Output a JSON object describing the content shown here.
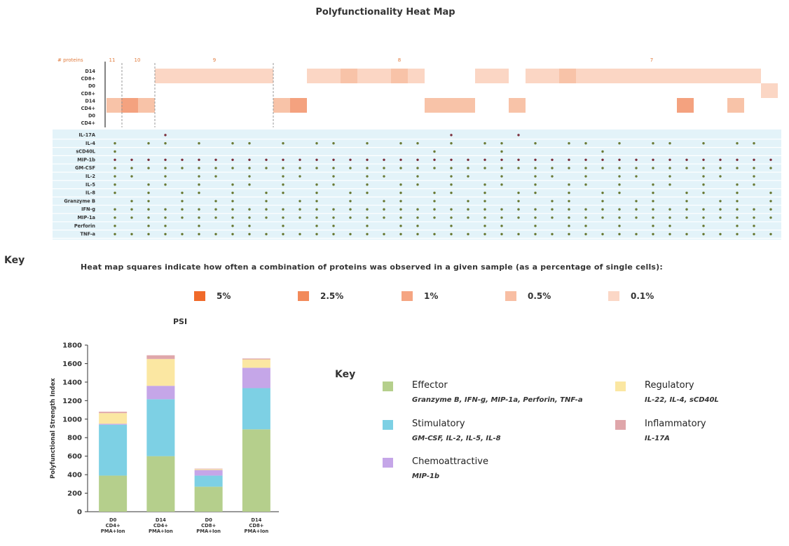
{
  "title": "Polyfunctionality Heat Map",
  "heatmap": {
    "protein_count_label": "# proteins",
    "protein_count_groups": [
      "11",
      "10",
      "9",
      "8",
      "7"
    ],
    "sample_labels": [
      "D14",
      "CD8+",
      "D0",
      "CD8+",
      "D14",
      "CD4+",
      "D0",
      "CD4+"
    ],
    "proteins": [
      "IL-17A",
      "IL-4",
      "sCD40L",
      "MIP-1b",
      "GM-CSF",
      "IL-2",
      "IL-5",
      "IL-8",
      "Granzyme B",
      "IFN-g",
      "MIP-1a",
      "Perforin",
      "TNF-a"
    ],
    "colors": {
      "row_band": "#e3f3f9",
      "heat_very_light": "#fbd6c4",
      "heat_light": "#f8c3a8",
      "heat_medium": "#f4a27f",
      "grid_dot": "#6a7a35",
      "accent_dot": "#7a2d3a"
    }
  },
  "key1_title": "Key",
  "key1_desc": "Heat map squares indicate how often a combination of proteins was observed in a given sample (as a percentage of single cells):",
  "heat_legend": [
    {
      "label": "5%",
      "color": "#f06a2a"
    },
    {
      "label": "2.5%",
      "color": "#f28a5a"
    },
    {
      "label": "1%",
      "color": "#f5a582"
    },
    {
      "label": "0.5%",
      "color": "#f8bea3"
    },
    {
      "label": "0.1%",
      "color": "#fbd7c6"
    }
  ],
  "psi_title": "PSI",
  "key2_title": "Key",
  "categories": [
    {
      "name": "Effector",
      "members": "Granzyme B, IFN-g, MIP-1a, Perforin, TNF-a",
      "color": "#b5cf8c"
    },
    {
      "name": "Stimulatory",
      "members": "GM-CSF, IL-2, IL-5, IL-8",
      "color": "#7dd0e4"
    },
    {
      "name": "Chemoattractive",
      "members": "MIP-1b",
      "color": "#c5a6e8"
    },
    {
      "name": "Regulatory",
      "members": "IL-22, IL-4, sCD40L",
      "color": "#fbe7a2"
    },
    {
      "name": "Inflammatory",
      "members": "IL-17A",
      "color": "#dfa6aa"
    }
  ],
  "chart_data": {
    "type": "bar",
    "stacked": true,
    "title": "PSI",
    "ylabel": "Polyfunctional Strength Index",
    "ylim": [
      0,
      1800
    ],
    "yticks": [
      0,
      200,
      400,
      600,
      800,
      1000,
      1200,
      1400,
      1600,
      1800
    ],
    "categories": [
      [
        "D0",
        "CD4+",
        "PMA+Ion"
      ],
      [
        "D14",
        "CD4+",
        "PMA+Ion"
      ],
      [
        "D0",
        "CD8+",
        "PMA+Ion"
      ],
      [
        "D14",
        "CD8+",
        "PMA+Ion"
      ]
    ],
    "series": [
      {
        "name": "Effector",
        "values": [
          390,
          600,
          270,
          890
        ],
        "color": "#b5cf8c"
      },
      {
        "name": "Stimulatory",
        "values": [
          550,
          615,
          120,
          445
        ],
        "color": "#7dd0e4"
      },
      {
        "name": "Chemoattractive",
        "values": [
          10,
          145,
          60,
          220
        ],
        "color": "#c5a6e8"
      },
      {
        "name": "Regulatory",
        "values": [
          115,
          290,
          10,
          90
        ],
        "color": "#fbe7a2"
      },
      {
        "name": "Inflammatory",
        "values": [
          15,
          40,
          5,
          10
        ],
        "color": "#dfa6aa"
      }
    ]
  }
}
